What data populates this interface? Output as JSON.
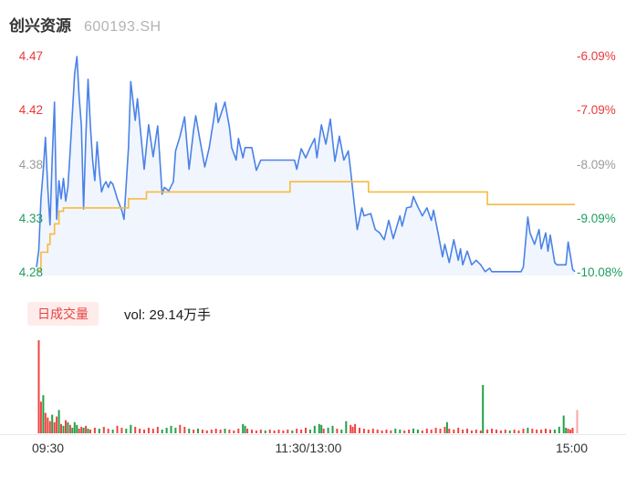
{
  "header": {
    "title": "创兴资源",
    "code": "600193.SH"
  },
  "volume_panel": {
    "legend": "日成交量",
    "vol_label": "vol: 29.14万手",
    "badge_bg": "#fdecea",
    "badge_color": "#e64242"
  },
  "colors": {
    "up_label": "#e8393d",
    "down_label": "#1d9d60",
    "flat_label": "#9b9b9b",
    "price_line": "#4a82e8",
    "price_fill_opacity": 0.08,
    "avg_line": "#f5bb41",
    "vol_red": "#ef4444",
    "vol_green": "#22a147",
    "vol_pink": "#f5a6a6",
    "separator": "#e8e8e8"
  },
  "chart_data": {
    "type": "line",
    "title": "创兴资源 600193.SH 分时走势",
    "minutes": 240,
    "price_range": [
      4.28,
      4.47
    ],
    "pct_range": [
      "-10.08%",
      "-6.09%"
    ],
    "grid": "off",
    "left_axis": [
      {
        "text": "4.47",
        "tone": "up"
      },
      {
        "text": "4.42",
        "tone": "up"
      },
      {
        "text": "4.38",
        "tone": "flat"
      },
      {
        "text": "4.33",
        "tone": "down"
      },
      {
        "text": "4.28",
        "tone": "down"
      }
    ],
    "right_axis": [
      {
        "text": "-6.09%",
        "tone": "up"
      },
      {
        "text": "-7.09%",
        "tone": "up"
      },
      {
        "text": "-8.09%",
        "tone": "flat"
      },
      {
        "text": "-9.09%",
        "tone": "down"
      },
      {
        "text": "-10.08%",
        "tone": "down"
      }
    ],
    "x_axis": [
      "09:30",
      "11:30/13:00",
      "15:00"
    ],
    "series": [
      {
        "name": "price",
        "points": [
          [
            0,
            4.285
          ],
          [
            1,
            4.3
          ],
          [
            2,
            4.345
          ],
          [
            3,
            4.37
          ],
          [
            4,
            4.399
          ],
          [
            5,
            4.355
          ],
          [
            6,
            4.322
          ],
          [
            7,
            4.38
          ],
          [
            8,
            4.43
          ],
          [
            9,
            4.327
          ],
          [
            10,
            4.361
          ],
          [
            11,
            4.345
          ],
          [
            12,
            4.363
          ],
          [
            13,
            4.343
          ],
          [
            14,
            4.355
          ],
          [
            15,
            4.387
          ],
          [
            16,
            4.42
          ],
          [
            17,
            4.455
          ],
          [
            18,
            4.47
          ],
          [
            19,
            4.435
          ],
          [
            20,
            4.409
          ],
          [
            21,
            4.336
          ],
          [
            22,
            4.4
          ],
          [
            23,
            4.45
          ],
          [
            24,
            4.41
          ],
          [
            25,
            4.379
          ],
          [
            26,
            4.361
          ],
          [
            27,
            4.395
          ],
          [
            28,
            4.37
          ],
          [
            29,
            4.351
          ],
          [
            30,
            4.357
          ],
          [
            31,
            4.36
          ],
          [
            32,
            4.355
          ],
          [
            33,
            4.36
          ],
          [
            34,
            4.358
          ],
          [
            35,
            4.352
          ],
          [
            36,
            4.345
          ],
          [
            38,
            4.335
          ],
          [
            39,
            4.327
          ],
          [
            41,
            4.39
          ],
          [
            42,
            4.448
          ],
          [
            44,
            4.414
          ],
          [
            45,
            4.433
          ],
          [
            48,
            4.371
          ],
          [
            50,
            4.41
          ],
          [
            52,
            4.382
          ],
          [
            54,
            4.409
          ],
          [
            56,
            4.349
          ],
          [
            57,
            4.355
          ],
          [
            59,
            4.352
          ],
          [
            61,
            4.36
          ],
          [
            62,
            4.387
          ],
          [
            64,
            4.4
          ],
          [
            66,
            4.417
          ],
          [
            68,
            4.371
          ],
          [
            70,
            4.405
          ],
          [
            71,
            4.418
          ],
          [
            73,
            4.395
          ],
          [
            75,
            4.373
          ],
          [
            77,
            4.39
          ],
          [
            79,
            4.415
          ],
          [
            80,
            4.429
          ],
          [
            81,
            4.412
          ],
          [
            84,
            4.43
          ],
          [
            86,
            4.408
          ],
          [
            87,
            4.39
          ],
          [
            89,
            4.379
          ],
          [
            90,
            4.398
          ],
          [
            92,
            4.381
          ],
          [
            93,
            4.39
          ],
          [
            96,
            4.39
          ],
          [
            98,
            4.37
          ],
          [
            100,
            4.379
          ],
          [
            115,
            4.379
          ],
          [
            116,
            4.371
          ],
          [
            118,
            4.389
          ],
          [
            120,
            4.381
          ],
          [
            122,
            4.39
          ],
          [
            124,
            4.398
          ],
          [
            125,
            4.381
          ],
          [
            127,
            4.41
          ],
          [
            129,
            4.393
          ],
          [
            131,
            4.415
          ],
          [
            133,
            4.378
          ],
          [
            135,
            4.4
          ],
          [
            137,
            4.379
          ],
          [
            139,
            4.387
          ],
          [
            140,
            4.37
          ],
          [
            142,
            4.334
          ],
          [
            143,
            4.318
          ],
          [
            145,
            4.337
          ],
          [
            146,
            4.33
          ],
          [
            149,
            4.332
          ],
          [
            151,
            4.318
          ],
          [
            153,
            4.315
          ],
          [
            155,
            4.309
          ],
          [
            157,
            4.326
          ],
          [
            159,
            4.31
          ],
          [
            162,
            4.33
          ],
          [
            163,
            4.321
          ],
          [
            165,
            4.337
          ],
          [
            167,
            4.338
          ],
          [
            168,
            4.347
          ],
          [
            170,
            4.338
          ],
          [
            172,
            4.33
          ],
          [
            174,
            4.337
          ],
          [
            176,
            4.326
          ],
          [
            177,
            4.335
          ],
          [
            179,
            4.315
          ],
          [
            181,
            4.294
          ],
          [
            182,
            4.305
          ],
          [
            184,
            4.289
          ],
          [
            186,
            4.309
          ],
          [
            188,
            4.291
          ],
          [
            189,
            4.301
          ],
          [
            190,
            4.287
          ],
          [
            192,
            4.299
          ],
          [
            194,
            4.287
          ],
          [
            196,
            4.291
          ],
          [
            198,
            4.287
          ],
          [
            200,
            4.281
          ],
          [
            202,
            4.284
          ],
          [
            203,
            4.281
          ],
          [
            216,
            4.281
          ],
          [
            217,
            4.285
          ],
          [
            219,
            4.329
          ],
          [
            220,
            4.315
          ],
          [
            222,
            4.305
          ],
          [
            224,
            4.318
          ],
          [
            225,
            4.301
          ],
          [
            227,
            4.315
          ],
          [
            228,
            4.299
          ],
          [
            229,
            4.313
          ],
          [
            231,
            4.289
          ],
          [
            232,
            4.287
          ],
          [
            236,
            4.287
          ],
          [
            237,
            4.307
          ],
          [
            238,
            4.295
          ],
          [
            239,
            4.283
          ],
          [
            240,
            4.281
          ]
        ]
      },
      {
        "name": "avg",
        "interpolation": "step",
        "points": [
          [
            0,
            4.282
          ],
          [
            2,
            4.298
          ],
          [
            5,
            4.305
          ],
          [
            6,
            4.314
          ],
          [
            8,
            4.323
          ],
          [
            10,
            4.334
          ],
          [
            12,
            4.337
          ],
          [
            41,
            4.345
          ],
          [
            49,
            4.351
          ],
          [
            113,
            4.36
          ],
          [
            148,
            4.351
          ],
          [
            201,
            4.34
          ],
          [
            240,
            4.34
          ]
        ]
      }
    ],
    "volume": {
      "unit": "万手",
      "total": "29.14",
      "bars": [
        [
          1,
          1.0,
          "r"
        ],
        [
          2,
          0.34,
          "r"
        ],
        [
          3,
          0.41,
          "g"
        ],
        [
          4,
          0.22,
          "r"
        ],
        [
          5,
          0.17,
          "r"
        ],
        [
          6,
          0.13,
          "r"
        ],
        [
          7,
          0.2,
          "g"
        ],
        [
          8,
          0.12,
          "r"
        ],
        [
          9,
          0.18,
          "r"
        ],
        [
          10,
          0.25,
          "g"
        ],
        [
          11,
          0.1,
          "r"
        ],
        [
          12,
          0.08,
          "g"
        ],
        [
          13,
          0.14,
          "r"
        ],
        [
          14,
          0.12,
          "g"
        ],
        [
          15,
          0.09,
          "r"
        ],
        [
          16,
          0.06,
          "g"
        ],
        [
          17,
          0.12,
          "g"
        ],
        [
          18,
          0.09,
          "g"
        ],
        [
          19,
          0.05,
          "r"
        ],
        [
          20,
          0.07,
          "r"
        ],
        [
          21,
          0.06,
          "g"
        ],
        [
          22,
          0.08,
          "r"
        ],
        [
          23,
          0.05,
          "g"
        ],
        [
          24,
          0.04,
          "r"
        ],
        [
          26,
          0.06,
          "r"
        ],
        [
          28,
          0.05,
          "g"
        ],
        [
          30,
          0.07,
          "r"
        ],
        [
          32,
          0.05,
          "r"
        ],
        [
          34,
          0.04,
          "g"
        ],
        [
          36,
          0.08,
          "r"
        ],
        [
          38,
          0.06,
          "r"
        ],
        [
          40,
          0.05,
          "g"
        ],
        [
          42,
          0.09,
          "g"
        ],
        [
          44,
          0.07,
          "r"
        ],
        [
          46,
          0.05,
          "r"
        ],
        [
          48,
          0.04,
          "r"
        ],
        [
          50,
          0.06,
          "r"
        ],
        [
          52,
          0.05,
          "r"
        ],
        [
          54,
          0.07,
          "r"
        ],
        [
          56,
          0.04,
          "g"
        ],
        [
          58,
          0.06,
          "g"
        ],
        [
          60,
          0.08,
          "g"
        ],
        [
          62,
          0.06,
          "g"
        ],
        [
          64,
          0.09,
          "r"
        ],
        [
          66,
          0.07,
          "r"
        ],
        [
          68,
          0.05,
          "g"
        ],
        [
          70,
          0.04,
          "r"
        ],
        [
          72,
          0.05,
          "g"
        ],
        [
          74,
          0.04,
          "r"
        ],
        [
          76,
          0.03,
          "r"
        ],
        [
          78,
          0.04,
          "r"
        ],
        [
          80,
          0.05,
          "r"
        ],
        [
          82,
          0.04,
          "r"
        ],
        [
          84,
          0.05,
          "g"
        ],
        [
          86,
          0.04,
          "r"
        ],
        [
          88,
          0.03,
          "r"
        ],
        [
          90,
          0.05,
          "r"
        ],
        [
          92,
          0.1,
          "g"
        ],
        [
          93,
          0.08,
          "g"
        ],
        [
          94,
          0.05,
          "r"
        ],
        [
          96,
          0.04,
          "r"
        ],
        [
          98,
          0.03,
          "r"
        ],
        [
          100,
          0.04,
          "r"
        ],
        [
          102,
          0.03,
          "g"
        ],
        [
          104,
          0.04,
          "r"
        ],
        [
          106,
          0.03,
          "r"
        ],
        [
          108,
          0.04,
          "r"
        ],
        [
          110,
          0.03,
          "r"
        ],
        [
          112,
          0.04,
          "r"
        ],
        [
          114,
          0.03,
          "g"
        ],
        [
          116,
          0.05,
          "r"
        ],
        [
          118,
          0.04,
          "r"
        ],
        [
          120,
          0.06,
          "r"
        ],
        [
          122,
          0.04,
          "g"
        ],
        [
          124,
          0.08,
          "g"
        ],
        [
          126,
          0.1,
          "g"
        ],
        [
          127,
          0.09,
          "g"
        ],
        [
          128,
          0.05,
          "r"
        ],
        [
          130,
          0.06,
          "g"
        ],
        [
          132,
          0.08,
          "g"
        ],
        [
          134,
          0.05,
          "r"
        ],
        [
          136,
          0.04,
          "g"
        ],
        [
          138,
          0.13,
          "g"
        ],
        [
          140,
          0.09,
          "r"
        ],
        [
          141,
          0.07,
          "r"
        ],
        [
          142,
          0.1,
          "r"
        ],
        [
          144,
          0.06,
          "r"
        ],
        [
          146,
          0.05,
          "r"
        ],
        [
          148,
          0.04,
          "r"
        ],
        [
          150,
          0.05,
          "r"
        ],
        [
          152,
          0.04,
          "r"
        ],
        [
          154,
          0.03,
          "r"
        ],
        [
          156,
          0.04,
          "r"
        ],
        [
          158,
          0.03,
          "r"
        ],
        [
          160,
          0.05,
          "g"
        ],
        [
          162,
          0.04,
          "g"
        ],
        [
          164,
          0.03,
          "r"
        ],
        [
          166,
          0.04,
          "r"
        ],
        [
          168,
          0.05,
          "g"
        ],
        [
          170,
          0.04,
          "g"
        ],
        [
          172,
          0.03,
          "r"
        ],
        [
          174,
          0.05,
          "r"
        ],
        [
          176,
          0.04,
          "r"
        ],
        [
          178,
          0.06,
          "r"
        ],
        [
          180,
          0.05,
          "r"
        ],
        [
          182,
          0.07,
          "r"
        ],
        [
          183,
          0.12,
          "g"
        ],
        [
          184,
          0.05,
          "r"
        ],
        [
          186,
          0.04,
          "r"
        ],
        [
          188,
          0.06,
          "r"
        ],
        [
          190,
          0.04,
          "r"
        ],
        [
          192,
          0.05,
          "r"
        ],
        [
          194,
          0.03,
          "r"
        ],
        [
          196,
          0.04,
          "r"
        ],
        [
          198,
          0.03,
          "r"
        ],
        [
          199,
          0.52,
          "g"
        ],
        [
          201,
          0.04,
          "r"
        ],
        [
          203,
          0.05,
          "r"
        ],
        [
          205,
          0.04,
          "r"
        ],
        [
          207,
          0.03,
          "r"
        ],
        [
          209,
          0.04,
          "r"
        ],
        [
          211,
          0.03,
          "g"
        ],
        [
          213,
          0.04,
          "r"
        ],
        [
          215,
          0.03,
          "r"
        ],
        [
          217,
          0.05,
          "r"
        ],
        [
          219,
          0.06,
          "g"
        ],
        [
          221,
          0.05,
          "r"
        ],
        [
          223,
          0.04,
          "r"
        ],
        [
          225,
          0.04,
          "r"
        ],
        [
          227,
          0.05,
          "r"
        ],
        [
          229,
          0.04,
          "r"
        ],
        [
          231,
          0.04,
          "g"
        ],
        [
          233,
          0.07,
          "g"
        ],
        [
          235,
          0.19,
          "g"
        ],
        [
          236,
          0.06,
          "g"
        ],
        [
          237,
          0.05,
          "r"
        ],
        [
          238,
          0.04,
          "r"
        ],
        [
          239,
          0.06,
          "r"
        ],
        [
          241,
          0.25,
          "p"
        ]
      ]
    }
  }
}
